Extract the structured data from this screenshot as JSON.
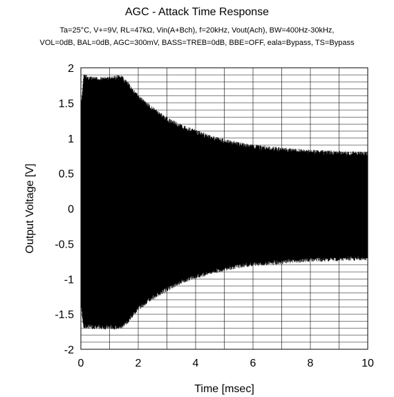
{
  "chart_data": {
    "type": "line",
    "title": "AGC - Attack Time Response",
    "subtitle_lines": [
      "Ta=25°C, V+=9V, RL=47kΩ, Vin(A+Bch), f=20kHz, Vout(Ach), BW=400Hz-30kHz,",
      "VOL=0dB, BAL=0dB,  AGC=300mV, BASS=TREB=0dB, BBE=OFF, eala=Bypass, TS=Bypass"
    ],
    "xlabel": "Time [msec]",
    "ylabel": "Output Voltage [V]",
    "xlim": [
      0,
      10
    ],
    "ylim": [
      -2,
      2
    ],
    "x_ticks": [
      0,
      2,
      4,
      6,
      8,
      10
    ],
    "y_ticks": [
      2,
      1.5,
      1,
      0.5,
      0,
      -0.5,
      -1,
      -1.5,
      -2
    ],
    "x_tick_labels": [
      "0",
      "2",
      "4",
      "6",
      "8",
      "10"
    ],
    "y_tick_labels": [
      "2",
      "1.5",
      "1",
      "0.5",
      "0",
      "-0.5",
      "-1",
      "-1.5",
      "-2"
    ],
    "grid": true,
    "series": [
      {
        "color": "#000000",
        "envelope": {
          "x": [
            0,
            0.1,
            0.3,
            0.6,
            1.0,
            1.4,
            1.6,
            1.8,
            2.0,
            2.5,
            3.0,
            3.5,
            4.0,
            4.5,
            5.0,
            5.5,
            6.0,
            7.0,
            8.0,
            9.0,
            10.0
          ],
          "upper": [
            1.45,
            1.92,
            1.88,
            1.87,
            1.88,
            1.9,
            1.82,
            1.72,
            1.62,
            1.45,
            1.3,
            1.2,
            1.12,
            1.05,
            0.99,
            0.95,
            0.91,
            0.87,
            0.84,
            0.82,
            0.81
          ],
          "lower": [
            -1.4,
            -1.72,
            -1.71,
            -1.72,
            -1.72,
            -1.72,
            -1.65,
            -1.55,
            -1.45,
            -1.3,
            -1.18,
            -1.07,
            -1.0,
            -0.94,
            -0.89,
            -0.85,
            -0.82,
            -0.79,
            -0.76,
            -0.75,
            -0.74
          ]
        }
      }
    ]
  }
}
